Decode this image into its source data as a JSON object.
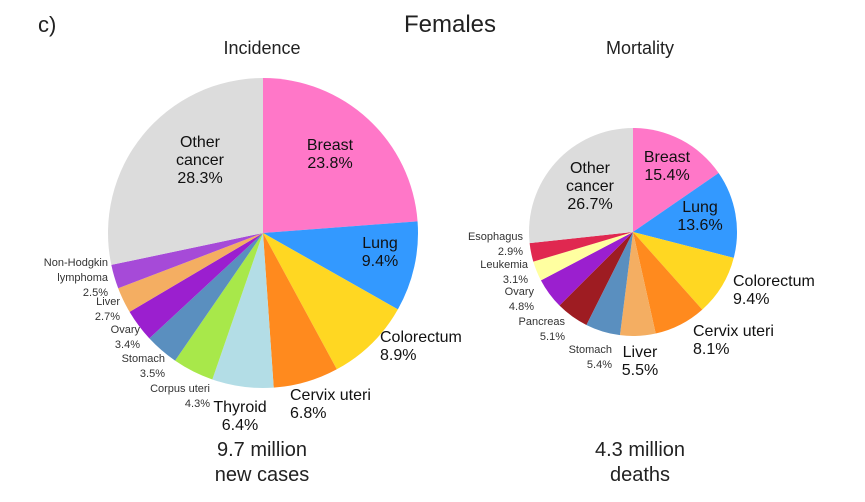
{
  "panel_label": "c)",
  "title": "Females",
  "chart_data": [
    {
      "type": "pie",
      "title": "Incidence",
      "footer": [
        "9.7 million",
        "new cases"
      ],
      "start": "12 o'clock, clockwise",
      "slices": [
        {
          "label_lines": [
            "Breast"
          ],
          "value": 23.8,
          "value_label": "23.8%",
          "color": "#ff77c8"
        },
        {
          "label_lines": [
            "Lung"
          ],
          "value": 9.4,
          "value_label": "9.4%",
          "color": "#3399ff"
        },
        {
          "label_lines": [
            "Colorectum"
          ],
          "value": 8.9,
          "value_label": "8.9%",
          "color": "#ffd722"
        },
        {
          "label_lines": [
            "Cervix uteri"
          ],
          "value": 6.8,
          "value_label": "6.8%",
          "color": "#ff8a1e"
        },
        {
          "label_lines": [
            "Thyroid"
          ],
          "value": 6.4,
          "value_label": "6.4%",
          "color": "#b3dde6"
        },
        {
          "label_lines": [
            "Corpus uteri"
          ],
          "value": 4.3,
          "value_label": "4.3%",
          "color": "#a8e84a"
        },
        {
          "label_lines": [
            "Stomach"
          ],
          "value": 3.5,
          "value_label": "3.5%",
          "color": "#5a8fbf"
        },
        {
          "label_lines": [
            "Ovary"
          ],
          "value": 3.4,
          "value_label": "3.4%",
          "color": "#9b1fcf"
        },
        {
          "label_lines": [
            "Liver"
          ],
          "value": 2.7,
          "value_label": "2.7%",
          "color": "#f4ae62"
        },
        {
          "label_lines": [
            "Non-Hodgkin",
            "lymphoma"
          ],
          "value": 2.5,
          "value_label": "2.5%",
          "color": "#a64ad8"
        },
        {
          "label_lines": [
            "Other",
            "cancer"
          ],
          "value": 28.3,
          "value_label": "28.3%",
          "color": "#dcdcdc"
        }
      ]
    },
    {
      "type": "pie",
      "title": "Mortality",
      "footer": [
        "4.3 million",
        "deaths"
      ],
      "start": "12 o'clock, clockwise",
      "slices": [
        {
          "label_lines": [
            "Breast"
          ],
          "value": 15.4,
          "value_label": "15.4%",
          "color": "#ff77c8"
        },
        {
          "label_lines": [
            "Lung"
          ],
          "value": 13.6,
          "value_label": "13.6%",
          "color": "#3399ff"
        },
        {
          "label_lines": [
            "Colorectum"
          ],
          "value": 9.4,
          "value_label": "9.4%",
          "color": "#ffd722"
        },
        {
          "label_lines": [
            "Cervix uteri"
          ],
          "value": 8.1,
          "value_label": "8.1%",
          "color": "#ff8a1e"
        },
        {
          "label_lines": [
            "Liver"
          ],
          "value": 5.5,
          "value_label": "5.5%",
          "color": "#f4ae62"
        },
        {
          "label_lines": [
            "Stomach"
          ],
          "value": 5.4,
          "value_label": "5.4%",
          "color": "#5a8fbf"
        },
        {
          "label_lines": [
            "Pancreas"
          ],
          "value": 5.1,
          "value_label": "5.1%",
          "color": "#9e1c22"
        },
        {
          "label_lines": [
            "Ovary"
          ],
          "value": 4.8,
          "value_label": "4.8%",
          "color": "#9b1fcf"
        },
        {
          "label_lines": [
            "Leukemia"
          ],
          "value": 3.1,
          "value_label": "3.1%",
          "color": "#ffffa0"
        },
        {
          "label_lines": [
            "Esophagus"
          ],
          "value": 2.9,
          "value_label": "2.9%",
          "color": "#e02850"
        },
        {
          "label_lines": [
            "Other",
            "cancer"
          ],
          "value": 26.7,
          "value_label": "26.7%",
          "color": "#dcdcdc"
        }
      ]
    }
  ]
}
